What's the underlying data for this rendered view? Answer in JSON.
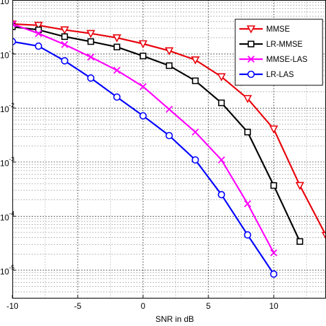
{
  "chart_data": {
    "type": "line",
    "xlabel": "SNR in dB",
    "ylabel": "",
    "title": "",
    "xscale": "linear",
    "yscale": "log",
    "xlim": [
      -10,
      14
    ],
    "ylim": [
      3e-06,
      1
    ],
    "x_ticks": [
      {
        "value": -10,
        "label": "-10"
      },
      {
        "value": -5,
        "label": "-5"
      },
      {
        "value": 0,
        "label": "0"
      },
      {
        "value": 5,
        "label": "5"
      },
      {
        "value": 10,
        "label": "10"
      }
    ],
    "y_ticks": [
      {
        "value": 0.1,
        "base": "10",
        "exp": "-1"
      },
      {
        "value": 0.01,
        "base": "10",
        "exp": "-2"
      },
      {
        "value": 0.001,
        "base": "10",
        "exp": "-3"
      },
      {
        "value": 0.0001,
        "base": "10",
        "exp": "-4"
      },
      {
        "value": 1e-05,
        "base": "10",
        "exp": "-5"
      }
    ],
    "y_top_partial_label": "10",
    "grid": true,
    "legend_position": "top-right",
    "series": [
      {
        "name": "MMSE",
        "color": "#e8000b",
        "marker": "triangle-down",
        "x": [
          -10,
          -8,
          -6,
          -4,
          -2,
          0,
          2,
          4,
          6,
          8,
          10,
          12,
          14
        ],
        "y": [
          0.36,
          0.34,
          0.28,
          0.24,
          0.2,
          0.155,
          0.115,
          0.078,
          0.038,
          0.015,
          0.0041,
          0.00037,
          4.4e-05
        ]
      },
      {
        "name": "LR-MMSE",
        "color": "#000000",
        "marker": "square",
        "x": [
          -10,
          -8,
          -6,
          -4,
          -2,
          0,
          2,
          4,
          6,
          8,
          10,
          12
        ],
        "y": [
          0.32,
          0.28,
          0.21,
          0.17,
          0.135,
          0.092,
          0.061,
          0.032,
          0.0125,
          0.0036,
          0.00037,
          3.4e-05
        ]
      },
      {
        "name": "MMSE-LAS",
        "color": "#ff00ff",
        "marker": "x",
        "x": [
          -10,
          -8,
          -6,
          -4,
          -2,
          0,
          2,
          4,
          6,
          8,
          10
        ],
        "y": [
          0.36,
          0.24,
          0.15,
          0.088,
          0.05,
          0.025,
          0.0095,
          0.0036,
          0.0011,
          0.00017,
          2.1e-05
        ]
      },
      {
        "name": "LR-LAS",
        "color": "#0000ff",
        "marker": "circle",
        "x": [
          -10,
          -8,
          -6,
          -4,
          -2,
          0,
          2,
          4,
          6,
          8,
          10
        ],
        "y": [
          0.17,
          0.14,
          0.075,
          0.036,
          0.016,
          0.0072,
          0.0031,
          0.0011,
          0.00025,
          4.5e-05,
          8.5e-06
        ]
      }
    ]
  }
}
